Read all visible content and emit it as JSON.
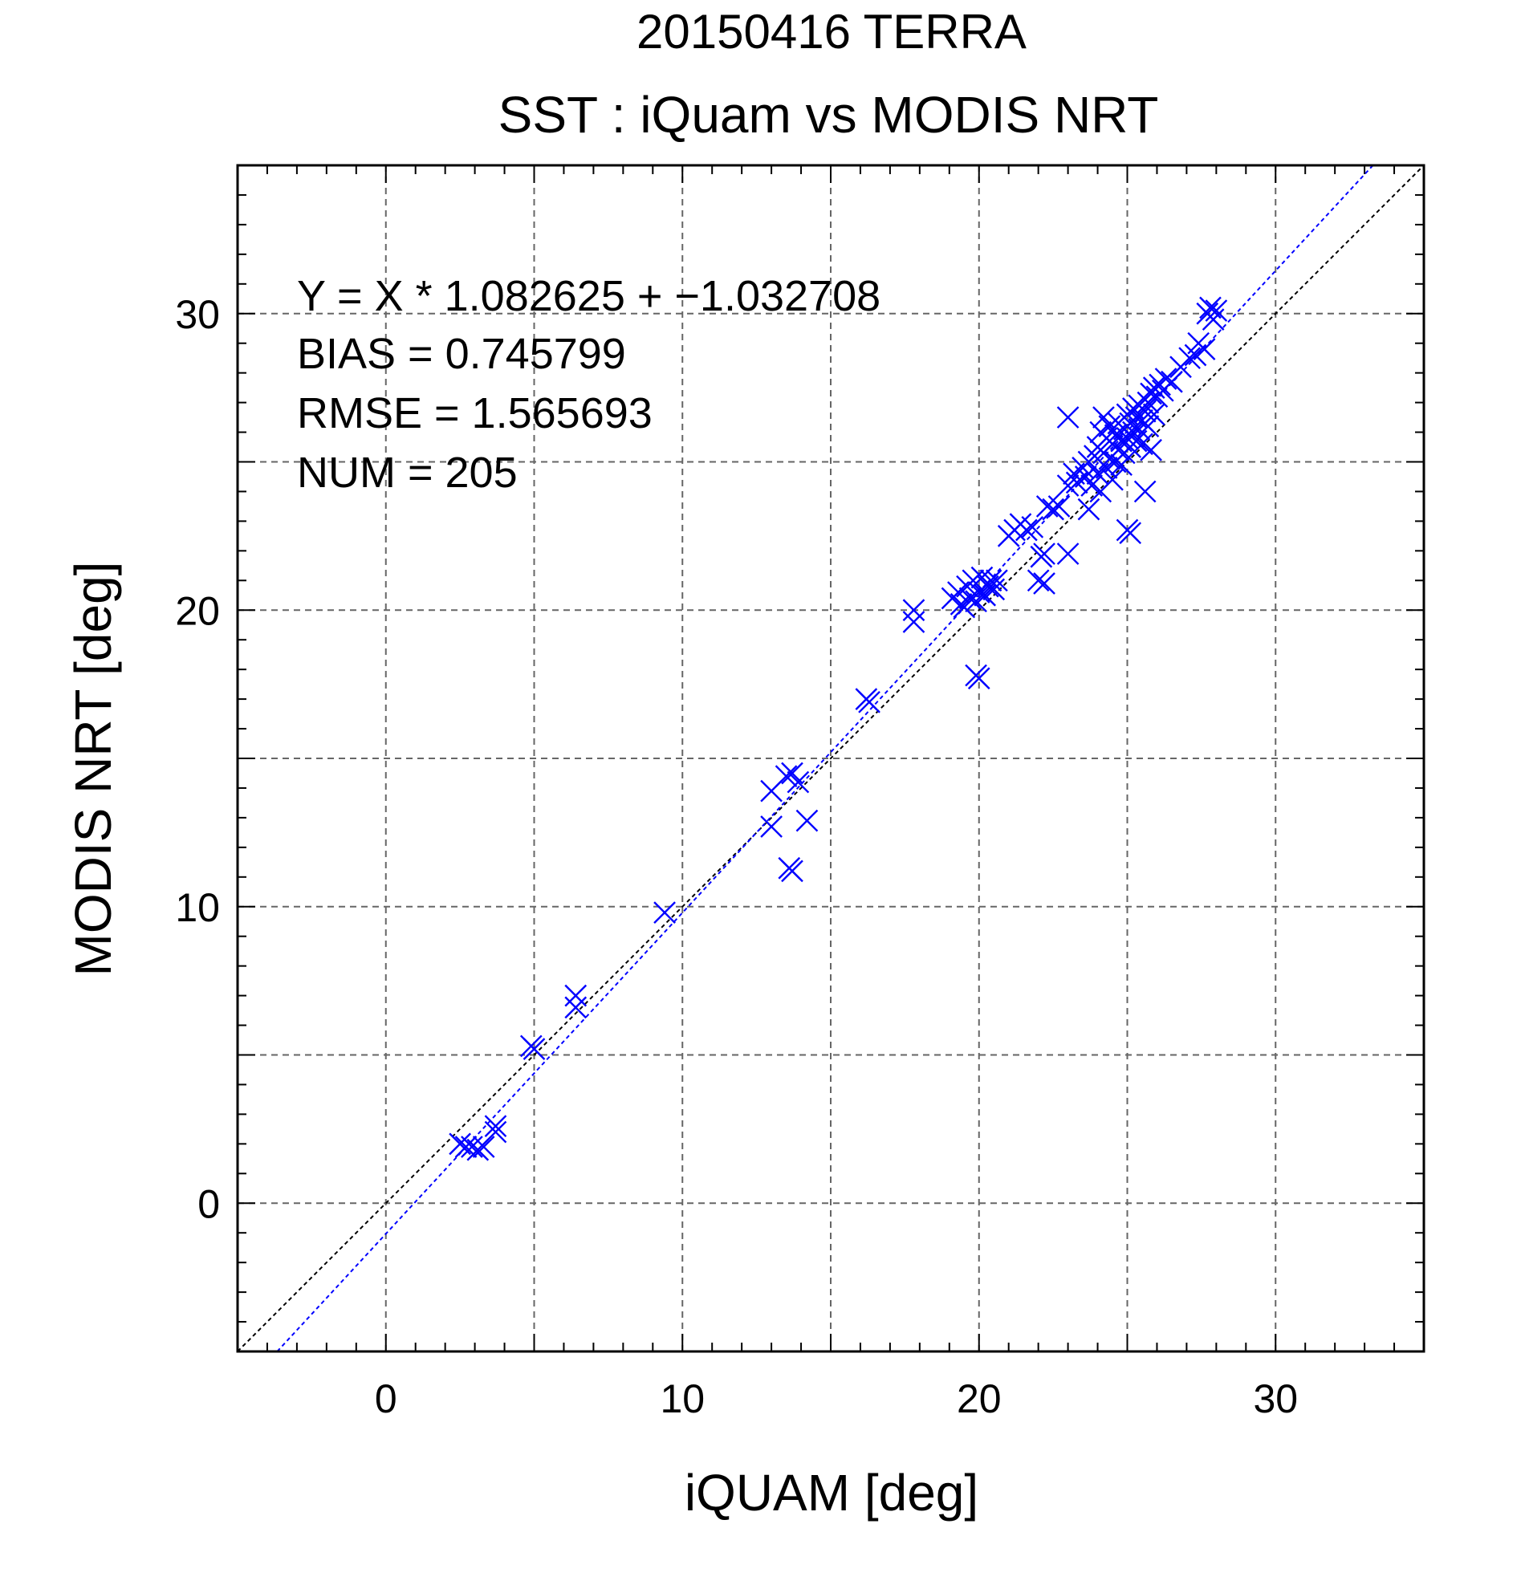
{
  "header": {
    "top_title": "20150416 TERRA",
    "main_title": "SST : iQuam vs MODIS NRT"
  },
  "annotations": {
    "equation": "Y = X * 1.082625 + −1.032708",
    "bias": "BIAS = 0.745799",
    "rmse": "RMSE = 1.565693",
    "num": "NUM = 205"
  },
  "colors": {
    "points": "#0000ff",
    "fit_line": "#0000ff",
    "identity_line": "#000000",
    "grid": "#666666",
    "top_title": "#808080"
  },
  "chart_data": {
    "type": "scatter",
    "title": "SST : iQuam vs MODIS NRT",
    "subtitle": "20150416 TERRA",
    "xlabel": "iQUAM [deg]",
    "ylabel": "MODIS NRT [deg]",
    "xlim": [
      -5,
      35
    ],
    "ylim": [
      -5,
      35
    ],
    "x_ticks": [
      0,
      10,
      20,
      30
    ],
    "y_ticks": [
      0,
      10,
      20,
      30
    ],
    "grid": true,
    "regression": {
      "slope": 1.082625,
      "intercept": -1.032708
    },
    "identity_line": true,
    "stats": {
      "bias": 0.745799,
      "rmse": 1.565693,
      "num": 205
    },
    "points": [
      {
        "x": 2.5,
        "y": 2.0
      },
      {
        "x": 2.7,
        "y": 1.9
      },
      {
        "x": 2.9,
        "y": 1.9
      },
      {
        "x": 3.1,
        "y": 1.8
      },
      {
        "x": 3.3,
        "y": 1.9
      },
      {
        "x": 3.7,
        "y": 2.6
      },
      {
        "x": 3.7,
        "y": 2.4
      },
      {
        "x": 4.9,
        "y": 5.3
      },
      {
        "x": 5.0,
        "y": 5.2
      },
      {
        "x": 6.4,
        "y": 7.0
      },
      {
        "x": 6.4,
        "y": 6.6
      },
      {
        "x": 9.4,
        "y": 9.8
      },
      {
        "x": 13.0,
        "y": 13.9
      },
      {
        "x": 13.0,
        "y": 12.7
      },
      {
        "x": 13.5,
        "y": 14.4
      },
      {
        "x": 13.7,
        "y": 14.5
      },
      {
        "x": 13.9,
        "y": 14.2
      },
      {
        "x": 14.2,
        "y": 12.9
      },
      {
        "x": 13.6,
        "y": 11.3
      },
      {
        "x": 13.7,
        "y": 11.2
      },
      {
        "x": 16.2,
        "y": 17.0
      },
      {
        "x": 16.3,
        "y": 16.9
      },
      {
        "x": 17.8,
        "y": 20.0
      },
      {
        "x": 17.8,
        "y": 19.6
      },
      {
        "x": 19.1,
        "y": 20.4
      },
      {
        "x": 19.3,
        "y": 20.6
      },
      {
        "x": 19.4,
        "y": 20.2
      },
      {
        "x": 19.5,
        "y": 20.1
      },
      {
        "x": 19.6,
        "y": 20.8
      },
      {
        "x": 19.7,
        "y": 20.4
      },
      {
        "x": 19.8,
        "y": 21.0
      },
      {
        "x": 19.9,
        "y": 20.3
      },
      {
        "x": 20.0,
        "y": 20.6
      },
      {
        "x": 20.1,
        "y": 21.1
      },
      {
        "x": 20.2,
        "y": 20.5
      },
      {
        "x": 20.3,
        "y": 20.8
      },
      {
        "x": 20.4,
        "y": 21.0
      },
      {
        "x": 20.5,
        "y": 20.7
      },
      {
        "x": 20.6,
        "y": 21.0
      },
      {
        "x": 19.9,
        "y": 17.8
      },
      {
        "x": 20.0,
        "y": 17.7
      },
      {
        "x": 21.0,
        "y": 22.5
      },
      {
        "x": 21.2,
        "y": 22.7
      },
      {
        "x": 21.4,
        "y": 22.9
      },
      {
        "x": 21.6,
        "y": 22.7
      },
      {
        "x": 21.8,
        "y": 22.8
      },
      {
        "x": 22.1,
        "y": 21.8
      },
      {
        "x": 22.2,
        "y": 21.9
      },
      {
        "x": 22.0,
        "y": 21.0
      },
      {
        "x": 22.2,
        "y": 20.9
      },
      {
        "x": 22.3,
        "y": 23.5
      },
      {
        "x": 22.5,
        "y": 23.4
      },
      {
        "x": 22.7,
        "y": 23.5
      },
      {
        "x": 23.0,
        "y": 21.9
      },
      {
        "x": 23.0,
        "y": 26.5
      },
      {
        "x": 23.0,
        "y": 24.2
      },
      {
        "x": 23.2,
        "y": 24.6
      },
      {
        "x": 23.3,
        "y": 24.3
      },
      {
        "x": 23.5,
        "y": 24.8
      },
      {
        "x": 23.6,
        "y": 24.5
      },
      {
        "x": 23.7,
        "y": 23.4
      },
      {
        "x": 23.7,
        "y": 25.0
      },
      {
        "x": 23.8,
        "y": 24.2
      },
      {
        "x": 23.9,
        "y": 25.2
      },
      {
        "x": 24.0,
        "y": 25.5
      },
      {
        "x": 24.0,
        "y": 24.6
      },
      {
        "x": 24.1,
        "y": 26.0
      },
      {
        "x": 24.1,
        "y": 24.0
      },
      {
        "x": 24.2,
        "y": 26.5
      },
      {
        "x": 24.2,
        "y": 25.3
      },
      {
        "x": 24.3,
        "y": 25.8
      },
      {
        "x": 24.3,
        "y": 24.8
      },
      {
        "x": 24.4,
        "y": 26.2
      },
      {
        "x": 24.4,
        "y": 25.1
      },
      {
        "x": 24.5,
        "y": 25.6
      },
      {
        "x": 24.5,
        "y": 24.4
      },
      {
        "x": 24.6,
        "y": 25.9
      },
      {
        "x": 24.6,
        "y": 25.0
      },
      {
        "x": 24.7,
        "y": 26.3
      },
      {
        "x": 24.7,
        "y": 25.4
      },
      {
        "x": 24.8,
        "y": 25.7
      },
      {
        "x": 24.8,
        "y": 24.9
      },
      {
        "x": 24.9,
        "y": 26.1
      },
      {
        "x": 24.9,
        "y": 25.3
      },
      {
        "x": 25.0,
        "y": 26.6
      },
      {
        "x": 25.0,
        "y": 25.8
      },
      {
        "x": 25.0,
        "y": 22.7
      },
      {
        "x": 25.1,
        "y": 22.6
      },
      {
        "x": 25.1,
        "y": 26.3
      },
      {
        "x": 25.1,
        "y": 25.5
      },
      {
        "x": 25.2,
        "y": 26.8
      },
      {
        "x": 25.2,
        "y": 26.0
      },
      {
        "x": 25.3,
        "y": 26.5
      },
      {
        "x": 25.3,
        "y": 25.7
      },
      {
        "x": 25.4,
        "y": 26.9
      },
      {
        "x": 25.4,
        "y": 26.1
      },
      {
        "x": 25.5,
        "y": 26.4
      },
      {
        "x": 25.5,
        "y": 25.6
      },
      {
        "x": 25.6,
        "y": 26.7
      },
      {
        "x": 25.6,
        "y": 24.0
      },
      {
        "x": 25.7,
        "y": 27.0
      },
      {
        "x": 25.7,
        "y": 26.2
      },
      {
        "x": 25.8,
        "y": 27.3
      },
      {
        "x": 25.8,
        "y": 25.4
      },
      {
        "x": 25.9,
        "y": 27.5
      },
      {
        "x": 25.9,
        "y": 26.6
      },
      {
        "x": 26.0,
        "y": 27.2
      },
      {
        "x": 26.1,
        "y": 27.6
      },
      {
        "x": 26.2,
        "y": 27.4
      },
      {
        "x": 26.3,
        "y": 27.8
      },
      {
        "x": 26.5,
        "y": 27.7
      },
      {
        "x": 26.8,
        "y": 28.2
      },
      {
        "x": 27.1,
        "y": 28.5
      },
      {
        "x": 27.3,
        "y": 28.6
      },
      {
        "x": 27.4,
        "y": 29.0
      },
      {
        "x": 27.6,
        "y": 28.8
      },
      {
        "x": 27.7,
        "y": 30.0
      },
      {
        "x": 27.8,
        "y": 30.2
      },
      {
        "x": 27.9,
        "y": 29.8
      },
      {
        "x": 28.0,
        "y": 30.1
      }
    ]
  },
  "axes": {
    "x_tick_labels": [
      "0",
      "10",
      "20",
      "30"
    ],
    "y_tick_labels": [
      "0",
      "10",
      "20",
      "30"
    ]
  }
}
